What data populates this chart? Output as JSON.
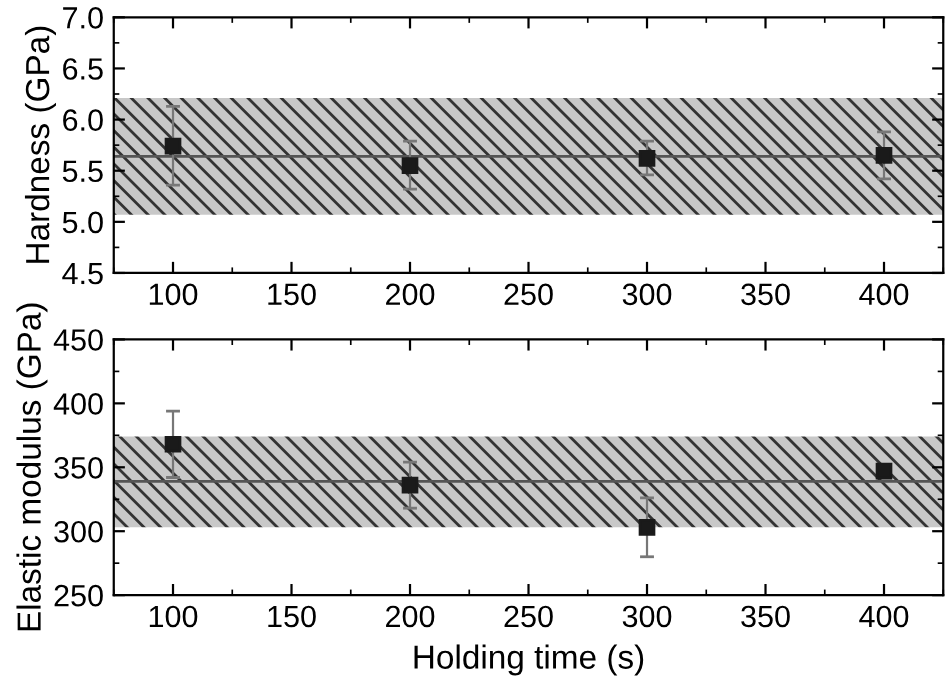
{
  "chart_data": [
    {
      "type": "scatter",
      "ylabel": "Hardness (GPa)",
      "x": [
        100,
        200,
        300,
        400
      ],
      "series": [
        {
          "color": "#1a1a1a",
          "values": [
            5.74,
            5.55,
            5.62,
            5.65
          ],
          "errors": [
            [
              5.36,
              6.13
            ],
            [
              5.32,
              5.79
            ],
            [
              5.46,
              5.79
            ],
            [
              5.42,
              5.88
            ]
          ]
        }
      ],
      "xlim": [
        75,
        425
      ],
      "xticks": [
        100,
        150,
        200,
        250,
        300,
        350,
        400
      ],
      "ylim": [
        4.5,
        7.0
      ],
      "yticks": [
        {
          "value": 4.5,
          "label": "4.5"
        },
        {
          "value": 5.0,
          "label": "5.0"
        },
        {
          "value": 5.5,
          "label": "5.5"
        },
        {
          "value": 6.0,
          "label": "6.0"
        },
        {
          "value": 6.5,
          "label": "6.5"
        },
        {
          "value": 7.0,
          "label": "7.0"
        }
      ],
      "bands": [
        {
          "axis": "y",
          "from": 5.07,
          "to": 6.21,
          "color": "#c8c8c8"
        }
      ],
      "ref_lines": [
        {
          "axis": "y",
          "value": 5.64,
          "color": "#555555",
          "line_style": "solid"
        }
      ],
      "marker": "square",
      "grid": false
    },
    {
      "type": "scatter",
      "ylabel": "Elastic modulus (GPa)",
      "xlabel": "Holding time (s)",
      "x": [
        100,
        200,
        300,
        400
      ],
      "series": [
        {
          "color": "#1a1a1a",
          "values": [
            368,
            336,
            303,
            347
          ],
          "errors": [
            [
              342,
              394
            ],
            [
              318,
              354
            ],
            [
              280,
              326
            ],
            [
              344,
              350
            ]
          ]
        }
      ],
      "xlim": [
        75,
        425
      ],
      "xticks": [
        100,
        150,
        200,
        250,
        300,
        350,
        400
      ],
      "ylim": [
        250,
        450
      ],
      "yticks": [
        250,
        300,
        350,
        400,
        450
      ],
      "bands": [
        {
          "axis": "y",
          "from": 303,
          "to": 374,
          "color": "#c8c8c8"
        }
      ],
      "ref_lines": [
        {
          "axis": "y",
          "value": 339,
          "color": "#555555",
          "line_style": "solid"
        }
      ],
      "marker": "square",
      "grid": false
    }
  ]
}
